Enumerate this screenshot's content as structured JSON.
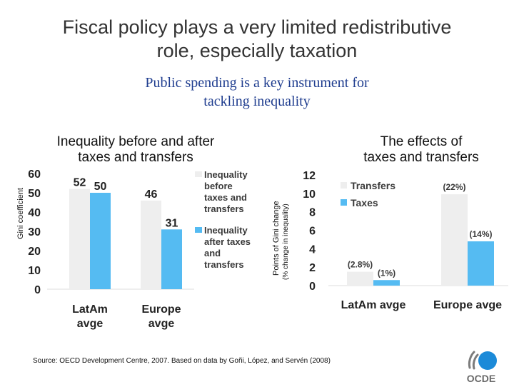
{
  "header": {
    "title_line1": "Fiscal policy plays a very limited redistributive",
    "title_line2": "role, especially taxation",
    "subtitle_line1": "Public spending is a key instrument for",
    "subtitle_line2": "tackling inequality"
  },
  "colors": {
    "before": "#eeeeee",
    "after": "#55bbf2",
    "legend_text": "#3a3a3a",
    "title_blue": "#1f3d8f"
  },
  "chart_data": [
    {
      "type": "bar",
      "title_line1": "Inequality before and after",
      "title_line2": "taxes and transfers",
      "ylabel": "Gini coefficient",
      "ylim": [
        0,
        60
      ],
      "yticks": [
        "0",
        "10",
        "20",
        "30",
        "40",
        "50",
        "60"
      ],
      "categories": [
        [
          "LatAm",
          "avge"
        ],
        [
          "Europe",
          "avge"
        ]
      ],
      "series": [
        {
          "name": [
            "Inequality",
            "before",
            "taxes and",
            "transfers"
          ],
          "values": [
            52,
            46
          ],
          "labels": [
            "52",
            "46"
          ]
        },
        {
          "name": [
            "Inequality",
            "after taxes",
            "and",
            "transfers"
          ],
          "values": [
            50,
            31
          ],
          "labels": [
            "50",
            "31"
          ]
        }
      ]
    },
    {
      "type": "bar",
      "title_line1": "The effects of",
      "title_line2": "taxes and transfers",
      "ylabel_line1": "Points of Gini change",
      "ylabel_line2": "(% change in inequality)",
      "ylim": [
        0,
        12
      ],
      "yticks": [
        "0",
        "2",
        "4",
        "6",
        "8",
        "10",
        "12"
      ],
      "categories": [
        "LatAm avge",
        "Europe avge"
      ],
      "series": [
        {
          "name": "Transfers",
          "values": [
            1.5,
            9.9
          ],
          "labels": [
            "(2.8%)",
            "(22%)"
          ]
        },
        {
          "name": "Taxes",
          "values": [
            0.6,
            4.8
          ],
          "labels": [
            "(1%)",
            "(14%)"
          ]
        }
      ]
    }
  ],
  "footer": {
    "source": "Source: OECD Development Centre, 2007. Based on data by  Goñi, López, and Servén (2008)",
    "logo_text": "OCDE"
  }
}
